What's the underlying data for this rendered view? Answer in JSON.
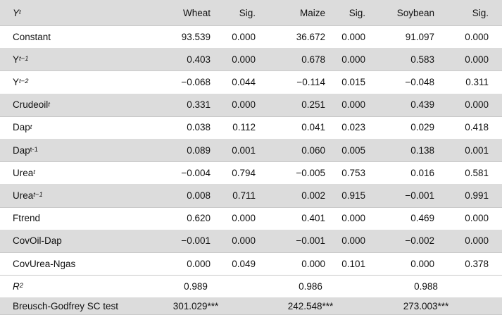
{
  "header": {
    "var_main": "Y",
    "var_sub": "t",
    "columns": [
      "Wheat",
      "Sig.",
      "Maize",
      "Sig.",
      "Soybean",
      "Sig."
    ]
  },
  "rows": [
    {
      "label": "Constant",
      "sub": "",
      "values": [
        "93.539",
        "0.000",
        "36.672",
        "0.000",
        "91.097",
        "0.000"
      ]
    },
    {
      "label": "Y",
      "sub": "t−1",
      "values": [
        "0.403",
        "0.000",
        "0.678",
        "0.000",
        "0.583",
        "0.000"
      ]
    },
    {
      "label": "Y",
      "sub": "t−2",
      "values": [
        "−0.068",
        "0.044",
        "−0.114",
        "0.015",
        "−0.048",
        "0.311"
      ]
    },
    {
      "label": "Crudeoil",
      "sub": "t",
      "values": [
        "0.331",
        "0.000",
        "0.251",
        "0.000",
        "0.439",
        "0.000"
      ]
    },
    {
      "label": "Dap",
      "sub": "t",
      "values": [
        "0.038",
        "0.112",
        "0.041",
        "0.023",
        "0.029",
        "0.418"
      ]
    },
    {
      "label": "Dap",
      "sub": "t-1",
      "values": [
        "0.089",
        "0.001",
        "0.060",
        "0.005",
        "0.138",
        "0.001"
      ]
    },
    {
      "label": "Urea",
      "sub": "t",
      "values": [
        "−0.004",
        "0.794",
        "−0.005",
        "0.753",
        "0.016",
        "0.581"
      ]
    },
    {
      "label": "Urea",
      "sub": "t−1",
      "values": [
        "0.008",
        "0.711",
        "0.002",
        "0.915",
        "−0.001",
        "0.991"
      ]
    },
    {
      "label": "Ftrend",
      "sub": "",
      "values": [
        "0.620",
        "0.000",
        "0.401",
        "0.000",
        "0.469",
        "0.000"
      ]
    },
    {
      "label": "CovOil-Dap",
      "sub": "",
      "values": [
        "−0.001",
        "0.000",
        "−0.001",
        "0.000",
        "−0.002",
        "0.000"
      ]
    },
    {
      "label": "CovUrea-Ngas",
      "sub": "",
      "values": [
        "0.000",
        "0.049",
        "0.000",
        "0.101",
        "0.000",
        "0.378"
      ]
    }
  ],
  "r2": {
    "label_main": "R",
    "label_sup": "2",
    "values": [
      "0.989",
      "0.986",
      "0.988"
    ]
  },
  "bg_test": {
    "label": "Breusch-Godfrey SC test",
    "values": [
      "301.029***",
      "242.548***",
      "273.003***"
    ]
  }
}
